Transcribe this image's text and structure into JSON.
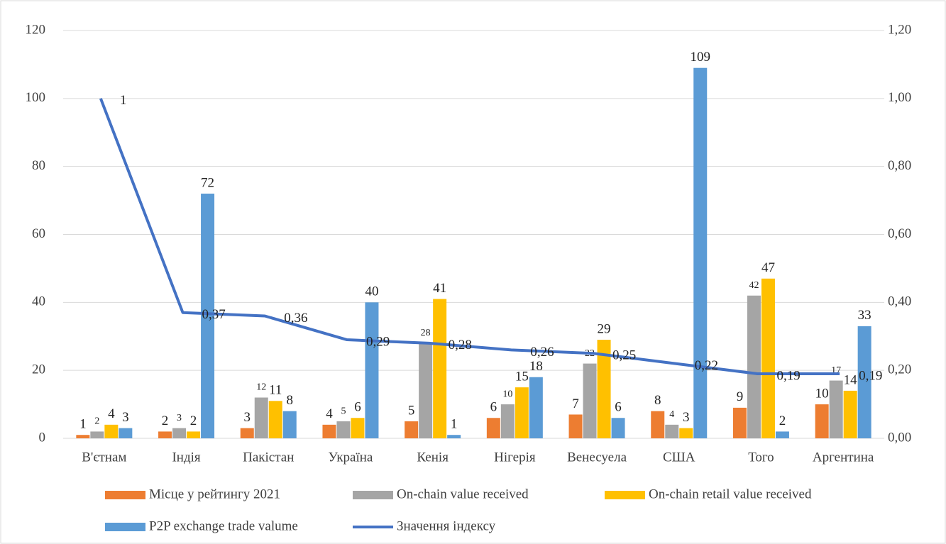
{
  "chart_data": {
    "type": "bar",
    "categories": [
      "В'єтнам",
      "Індія",
      "Пакістан",
      "Україна",
      "Кенія",
      "Нігерія",
      "Венесуела",
      "США",
      "Того",
      "Аргентина"
    ],
    "series": [
      {
        "name": "Місце у рейтингу 2021",
        "color": "#ED7D31",
        "values": [
          1,
          2,
          3,
          4,
          5,
          6,
          7,
          8,
          9,
          10
        ]
      },
      {
        "name": "On-chain value received",
        "color": "#A5A5A5",
        "values": [
          2,
          3,
          12,
          5,
          28,
          10,
          22,
          4,
          42,
          17
        ]
      },
      {
        "name": "On-chain retail value received",
        "color": "#FFC000",
        "values": [
          4,
          2,
          11,
          6,
          41,
          15,
          29,
          3,
          47,
          14
        ]
      },
      {
        "name": "P2P exchange trade valume",
        "color": "#5B9BD5",
        "values": [
          3,
          72,
          8,
          40,
          1,
          18,
          6,
          109,
          2,
          33
        ]
      },
      {
        "name": "Значення індексу",
        "color": "#4472C4",
        "type": "line",
        "axis": "y2",
        "values": [
          1,
          0.37,
          0.36,
          0.29,
          0.28,
          0.26,
          0.25,
          0.22,
          0.19,
          0.19
        ],
        "value_labels": [
          "1",
          "0,37",
          "0,36",
          "0,29",
          "0,28",
          "0,26",
          "0,25",
          "0,22",
          "0,19",
          "0,19"
        ]
      }
    ],
    "ylim": [
      0,
      120
    ],
    "yticks": [
      0,
      20,
      40,
      60,
      80,
      100,
      120
    ],
    "y2lim": [
      0,
      1.2
    ],
    "y2ticks": [
      {
        "value": 0,
        "label": "0,00"
      },
      {
        "value": 0.2,
        "label": "0,20"
      },
      {
        "value": 0.4,
        "label": "0,40"
      },
      {
        "value": 0.6,
        "label": "0,60"
      },
      {
        "value": 0.8,
        "label": "0,80"
      },
      {
        "value": 1,
        "label": "1,00"
      },
      {
        "value": 1.2,
        "label": "1,20"
      }
    ],
    "legend": "bottom"
  }
}
